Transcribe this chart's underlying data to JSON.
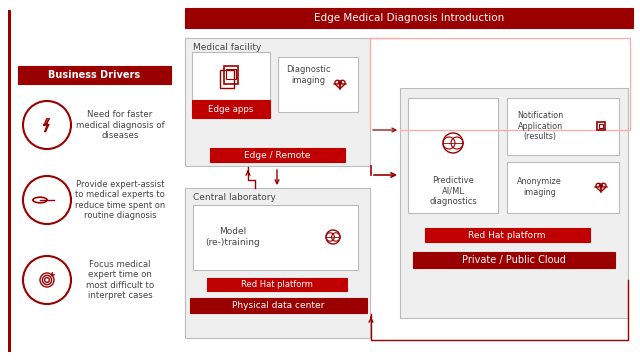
{
  "title": "Edge Medical Diagnosis Introduction",
  "red_dark": "#9b0000",
  "red_btn": "#c00000",
  "gray_bg": "#efefef",
  "gray_border": "#bbbbbb",
  "white": "#ffffff",
  "text_dark": "#444444",
  "business_drivers_label": "Business Drivers",
  "driver1": "Need for faster\nmedical diagnosis of\ndiseases",
  "driver2": "Provide expert-assist\nto medical experts to\nreduce time spent on\nroutine diagnosis",
  "driver3": "Focus medical\nexpert time on\nmost difficult to\ninterpret cases",
  "medical_facility_label": "Medical facility",
  "edge_apps_label": "Edge apps",
  "diagnostic_imaging_label": "Diagnostic\nimaging",
  "edge_remote_label": "Edge / Remote",
  "central_lab_label": "Central laboratory",
  "model_label": "Model\n(re-)training",
  "redhat_platform_label": "Red Hat platform",
  "physical_dc_label": "Physical data center",
  "predictive_label": "Predictive\nAI/ML\ndiagnostics",
  "notification_label": "Notification\nApplication\n(results)",
  "anonymize_label": "Anonymize\nimaging",
  "redhat_platform2_label": "Red Hat platform",
  "private_cloud_label": "Private / Public Cloud"
}
